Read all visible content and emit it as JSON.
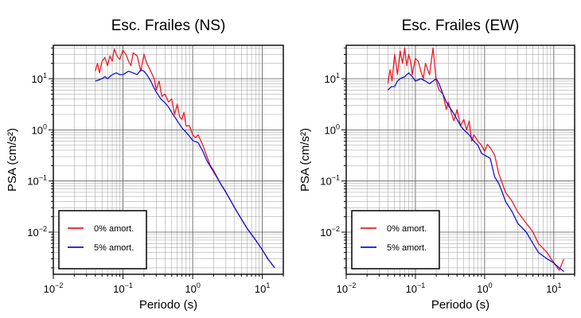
{
  "chart_data": [
    {
      "type": "line",
      "title": "Esc. Frailes (NS)",
      "xlabel": "Periodo (s)",
      "ylabel": "PSA (cm/s²)",
      "xscale": "log",
      "yscale": "log",
      "xlim": [
        0.01,
        20
      ],
      "ylim": [
        0.0015,
        45
      ],
      "grid": true,
      "legend_position": "bottom-left",
      "xticks": [
        {
          "base": "10",
          "exp": "−2"
        },
        {
          "base": "10",
          "exp": "−1"
        },
        {
          "base": "10",
          "exp": "0"
        },
        {
          "base": "10",
          "exp": "1"
        }
      ],
      "yticks": [
        {
          "base": "10",
          "exp": "−2"
        },
        {
          "base": "10",
          "exp": "−1"
        },
        {
          "base": "10",
          "exp": "0"
        },
        {
          "base": "10",
          "exp": "1"
        }
      ],
      "series": [
        {
          "name": "0% amort.",
          "color": "#ee1c25",
          "x": [
            0.04,
            0.043,
            0.046,
            0.05,
            0.055,
            0.06,
            0.065,
            0.07,
            0.075,
            0.08,
            0.085,
            0.09,
            0.1,
            0.11,
            0.12,
            0.13,
            0.14,
            0.16,
            0.18,
            0.2,
            0.22,
            0.25,
            0.28,
            0.3,
            0.33,
            0.36,
            0.4,
            0.45,
            0.5,
            0.55,
            0.6,
            0.65,
            0.7,
            0.75,
            0.8,
            0.9,
            1.0,
            1.1,
            1.2,
            1.4,
            1.6,
            1.8,
            2.0,
            2.5,
            3.0,
            4.0,
            5.0,
            6.0,
            8.0,
            10.0,
            12.0,
            15.0
          ],
          "y": [
            14,
            20,
            13,
            22,
            26,
            18,
            28,
            22,
            38,
            30,
            26,
            24,
            36,
            30,
            22,
            18,
            32,
            28,
            14,
            30,
            20,
            14,
            10,
            6,
            9,
            4.5,
            5,
            3.5,
            4,
            2,
            3.2,
            1.8,
            1.6,
            2.2,
            1.2,
            1.2,
            0.8,
            0.7,
            0.8,
            0.5,
            0.3,
            0.2,
            0.16,
            0.09,
            0.06,
            0.03,
            0.018,
            0.012,
            0.007,
            0.0045,
            0.003,
            0.002
          ]
        },
        {
          "name": "5% amort.",
          "color": "#1212d8",
          "x": [
            0.04,
            0.045,
            0.05,
            0.055,
            0.06,
            0.07,
            0.08,
            0.09,
            0.1,
            0.12,
            0.14,
            0.16,
            0.18,
            0.2,
            0.22,
            0.25,
            0.28,
            0.3,
            0.35,
            0.4,
            0.45,
            0.5,
            0.6,
            0.7,
            0.8,
            0.9,
            1.0,
            1.2,
            1.4,
            1.6,
            1.8,
            2.0,
            2.5,
            3.0,
            4.0,
            5.0,
            6.0,
            8.0,
            10.0,
            12.0,
            15.0
          ],
          "y": [
            9,
            9.5,
            10,
            11,
            10,
            12,
            13,
            12,
            12,
            14,
            13,
            12,
            15,
            14,
            12,
            9,
            6.5,
            5.5,
            4,
            3.4,
            2.8,
            2.2,
            1.5,
            1.1,
            0.9,
            0.75,
            0.62,
            0.56,
            0.38,
            0.25,
            0.19,
            0.15,
            0.09,
            0.06,
            0.03,
            0.018,
            0.012,
            0.007,
            0.0045,
            0.003,
            0.002
          ]
        }
      ]
    },
    {
      "type": "line",
      "title": "Esc. Frailes (EW)",
      "xlabel": "Periodo (s)",
      "ylabel": "PSA (cm/s²)",
      "xscale": "log",
      "yscale": "log",
      "xlim": [
        0.01,
        20
      ],
      "ylim": [
        0.0015,
        45
      ],
      "grid": true,
      "legend_position": "bottom-left",
      "xticks": [
        {
          "base": "10",
          "exp": "−2"
        },
        {
          "base": "10",
          "exp": "−1"
        },
        {
          "base": "10",
          "exp": "0"
        },
        {
          "base": "10",
          "exp": "1"
        }
      ],
      "yticks": [
        {
          "base": "10",
          "exp": "−2"
        },
        {
          "base": "10",
          "exp": "−1"
        },
        {
          "base": "10",
          "exp": "0"
        },
        {
          "base": "10",
          "exp": "1"
        }
      ],
      "series": [
        {
          "name": "0% amort.",
          "color": "#ee1c25",
          "x": [
            0.04,
            0.043,
            0.046,
            0.05,
            0.055,
            0.06,
            0.065,
            0.07,
            0.075,
            0.08,
            0.085,
            0.09,
            0.1,
            0.11,
            0.12,
            0.13,
            0.14,
            0.16,
            0.18,
            0.2,
            0.22,
            0.25,
            0.28,
            0.3,
            0.33,
            0.36,
            0.4,
            0.45,
            0.5,
            0.55,
            0.6,
            0.65,
            0.7,
            0.8,
            0.9,
            1.0,
            1.1,
            1.2,
            1.4,
            1.6,
            1.8,
            2.0,
            2.5,
            3.0,
            4.0,
            5.0,
            6.0,
            8.0,
            10.0,
            12.0,
            14.0
          ],
          "y": [
            8,
            15,
            9,
            30,
            12,
            35,
            20,
            40,
            18,
            30,
            22,
            12,
            25,
            22,
            14,
            10,
            20,
            12,
            40,
            9,
            6,
            5,
            2.5,
            3.5,
            2.2,
            1.5,
            2.5,
            1.2,
            1.6,
            1.0,
            1.5,
            0.6,
            0.8,
            0.6,
            0.5,
            0.38,
            0.52,
            0.45,
            0.32,
            0.14,
            0.09,
            0.06,
            0.04,
            0.025,
            0.015,
            0.01,
            0.006,
            0.004,
            0.0025,
            0.0018,
            0.003
          ]
        },
        {
          "name": "5% amort.",
          "color": "#1212d8",
          "x": [
            0.04,
            0.045,
            0.05,
            0.055,
            0.06,
            0.07,
            0.08,
            0.09,
            0.1,
            0.12,
            0.14,
            0.16,
            0.18,
            0.2,
            0.22,
            0.25,
            0.28,
            0.3,
            0.35,
            0.4,
            0.45,
            0.5,
            0.6,
            0.7,
            0.8,
            0.9,
            1.0,
            1.2,
            1.4,
            1.6,
            1.8,
            2.0,
            2.5,
            3.0,
            4.0,
            5.0,
            6.0,
            8.0,
            10.0,
            12.0,
            14.0
          ],
          "y": [
            6,
            7,
            7,
            9,
            10,
            11,
            13,
            11,
            9,
            10,
            9,
            8,
            9,
            10,
            8,
            5,
            3.5,
            3,
            2.2,
            1.6,
            1.2,
            1.0,
            0.8,
            0.6,
            0.5,
            0.35,
            0.32,
            0.28,
            0.12,
            0.09,
            0.06,
            0.04,
            0.025,
            0.015,
            0.01,
            0.006,
            0.004,
            0.003,
            0.0025,
            0.002,
            0.0017
          ]
        }
      ]
    }
  ]
}
